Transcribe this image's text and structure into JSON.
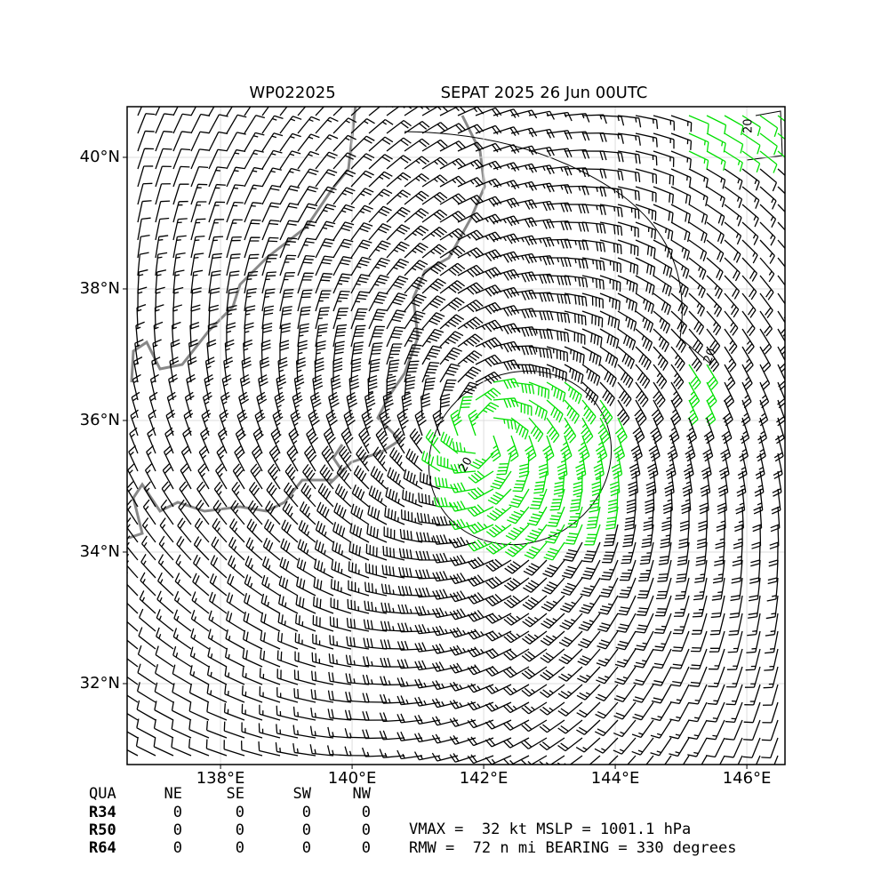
{
  "header": {
    "storm_id": "WP022025",
    "title": "SEPAT 2025 26 Jun 00UTC"
  },
  "map": {
    "lonlim": [
      136.58,
      146.58
    ],
    "latlim": [
      30.77,
      40.77
    ],
    "lat_ticks": [
      {
        "value": 40,
        "label": "40°N"
      },
      {
        "value": 38,
        "label": "38°N"
      },
      {
        "value": 36,
        "label": "36°N"
      },
      {
        "value": 34,
        "label": "34°N"
      },
      {
        "value": 32,
        "label": "32°N"
      }
    ],
    "lon_ticks": [
      {
        "value": 138,
        "label": "138°E"
      },
      {
        "value": 140,
        "label": "140°E"
      },
      {
        "value": 142,
        "label": "142°E"
      },
      {
        "value": 144,
        "label": "144°E"
      },
      {
        "value": 146,
        "label": "146°E"
      }
    ],
    "contour_labels": [
      "20",
      "20",
      "20"
    ]
  },
  "table": {
    "header": [
      "QUA",
      "NE",
      "SE",
      "SW",
      "NW"
    ],
    "rows": [
      [
        "R34",
        0,
        0,
        0,
        0
      ],
      [
        "R50",
        0,
        0,
        0,
        0
      ],
      [
        "R64",
        0,
        0,
        0,
        0
      ]
    ]
  },
  "info": [
    "VMAX =  32 kt MSLP = 1001.1 hPa",
    "RMW =  72 n mi BEARING = 330 degrees"
  ]
}
